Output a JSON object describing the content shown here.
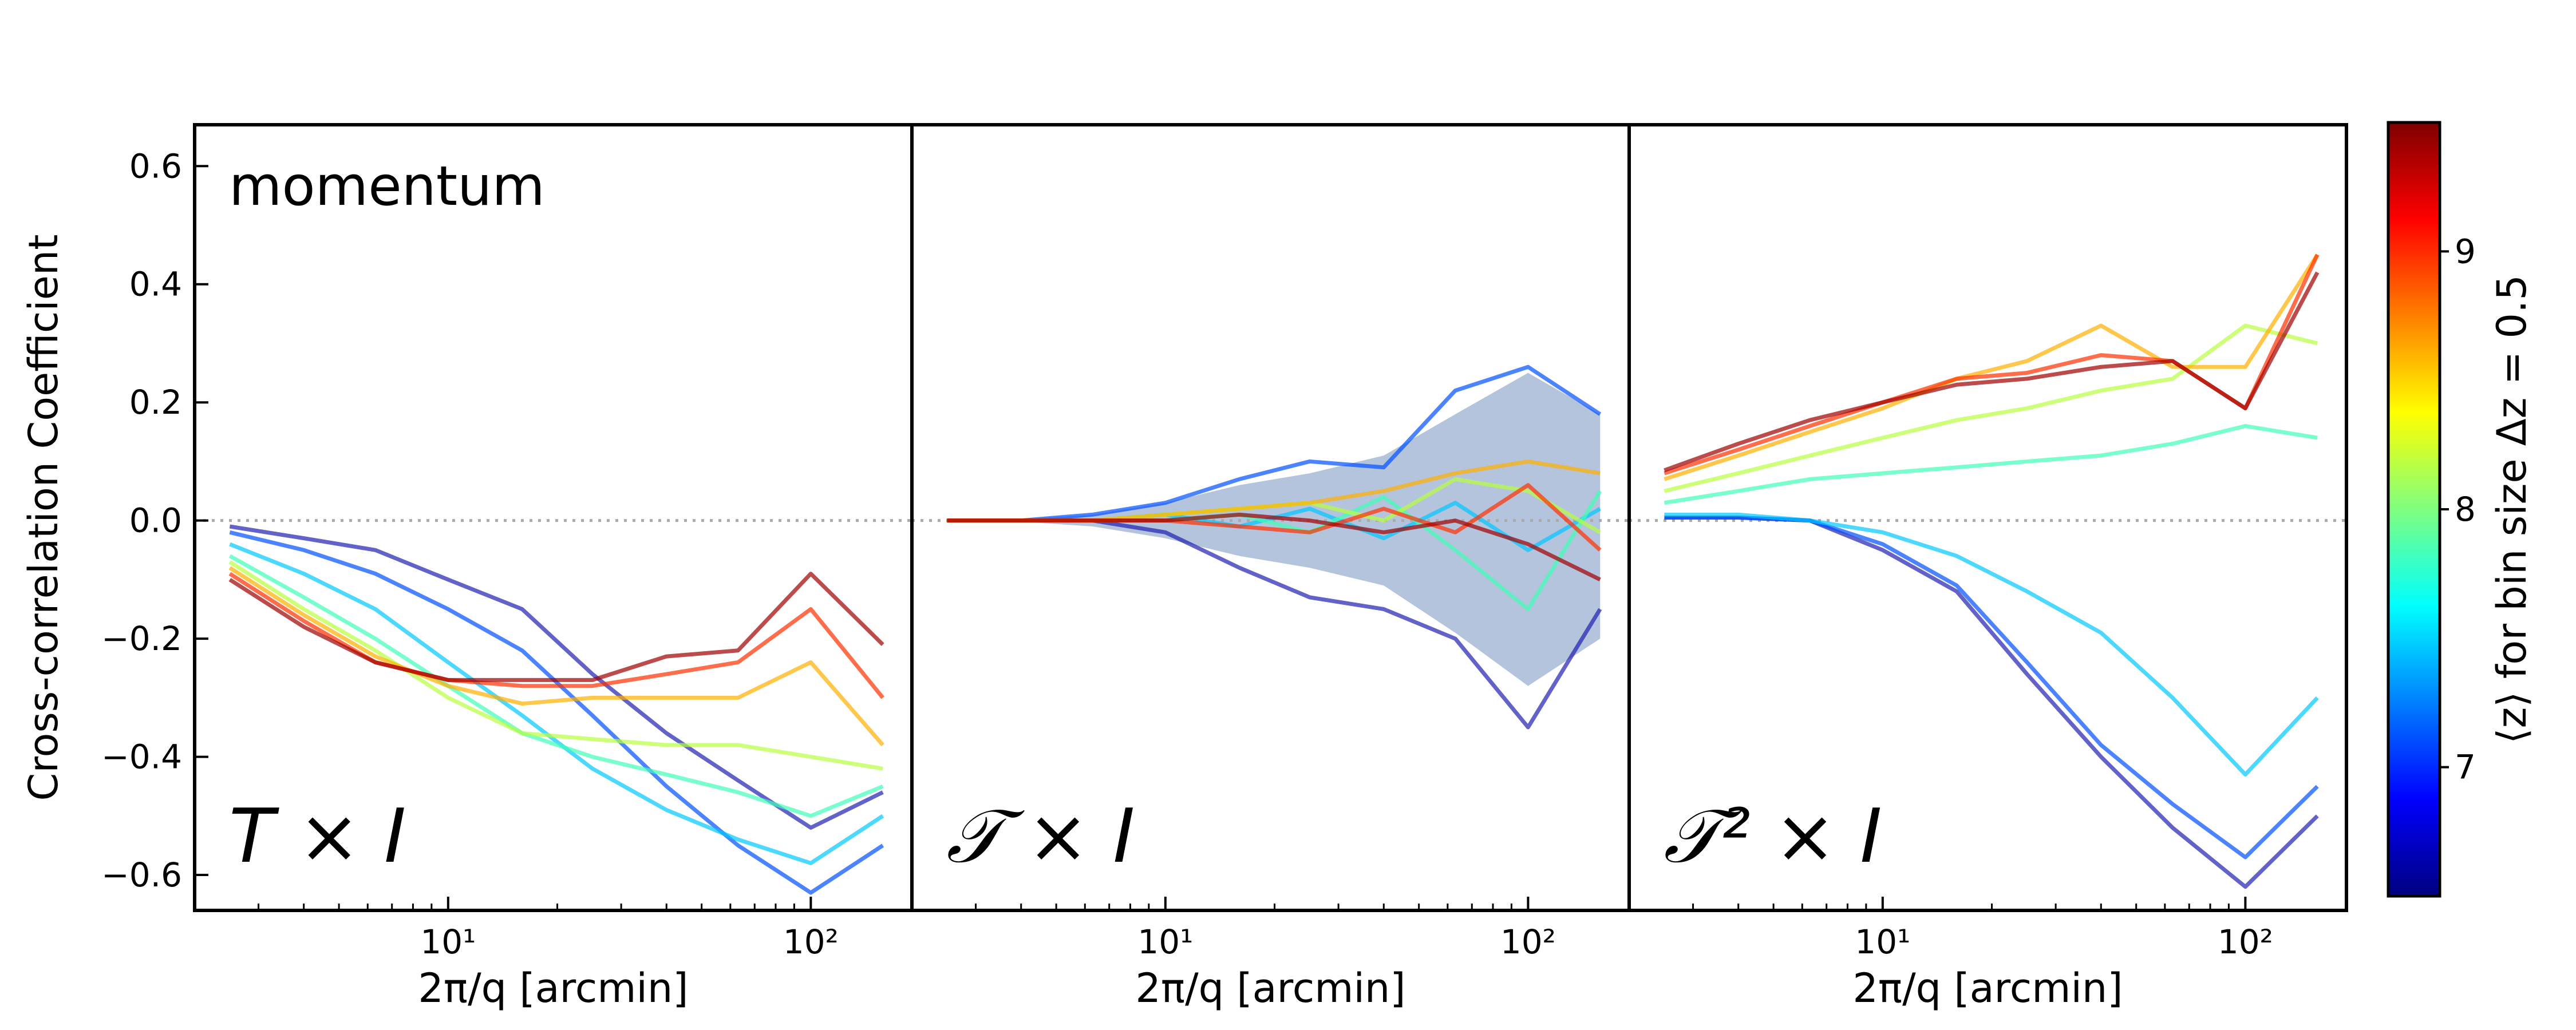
{
  "chart_data": [
    {
      "type": "line",
      "annotations": [
        "momentum",
        "T × I"
      ],
      "ylabel": "Cross-correlation Coefficient",
      "xlabel": "2π/q [arcmin]",
      "log_x": true,
      "xlim": [
        2,
        190
      ],
      "ylim": [
        -0.66,
        0.67
      ],
      "xticks": [
        {
          "value": 10,
          "label": "10¹"
        },
        {
          "value": 100,
          "label": "10²"
        }
      ],
      "xminorticks": [
        3,
        4,
        5,
        6,
        7,
        8,
        9,
        20,
        30,
        40,
        50,
        60,
        70,
        80,
        90
      ],
      "yticks": [
        {
          "value": -0.6,
          "label": "−0.6"
        },
        {
          "value": -0.4,
          "label": "−0.4"
        },
        {
          "value": -0.2,
          "label": "−0.2"
        },
        {
          "value": 0,
          "label": "0.0"
        },
        {
          "value": 0.2,
          "label": "0.2"
        },
        {
          "value": 0.4,
          "label": "0.4"
        },
        {
          "value": 0.6,
          "label": "0.6"
        }
      ],
      "reference_line": 0,
      "x": [
        2.5,
        4,
        6.3,
        10,
        16,
        25,
        40,
        63,
        100,
        158
      ],
      "series": [
        {
          "color": "#2020b0",
          "values": [
            -0.01,
            -0.03,
            -0.05,
            -0.1,
            -0.15,
            -0.26,
            -0.36,
            -0.44,
            -0.52,
            -0.46
          ]
        },
        {
          "color": "#0050ff",
          "values": [
            -0.02,
            -0.05,
            -0.09,
            -0.15,
            -0.22,
            -0.33,
            -0.45,
            -0.55,
            -0.63,
            -0.55
          ]
        },
        {
          "color": "#00c8ff",
          "values": [
            -0.04,
            -0.09,
            -0.15,
            -0.24,
            -0.33,
            -0.42,
            -0.49,
            -0.54,
            -0.58,
            -0.5
          ]
        },
        {
          "color": "#40ffb8",
          "values": [
            -0.06,
            -0.13,
            -0.2,
            -0.28,
            -0.36,
            -0.4,
            -0.43,
            -0.46,
            -0.5,
            -0.45
          ]
        },
        {
          "color": "#b8ff40",
          "values": [
            -0.07,
            -0.15,
            -0.22,
            -0.3,
            -0.36,
            -0.37,
            -0.38,
            -0.38,
            -0.4,
            -0.42
          ]
        },
        {
          "color": "#ffb000",
          "values": [
            -0.08,
            -0.16,
            -0.23,
            -0.28,
            -0.31,
            -0.3,
            -0.3,
            -0.3,
            -0.24,
            -0.38
          ]
        },
        {
          "color": "#ff3000",
          "values": [
            -0.09,
            -0.17,
            -0.24,
            -0.27,
            -0.28,
            -0.28,
            -0.26,
            -0.24,
            -0.15,
            -0.3
          ]
        },
        {
          "color": "#a00000",
          "values": [
            -0.1,
            -0.18,
            -0.24,
            -0.27,
            -0.27,
            -0.27,
            -0.23,
            -0.22,
            -0.09,
            -0.21
          ]
        }
      ]
    },
    {
      "type": "line",
      "annotations": [
        "𝒯 × I"
      ],
      "xlabel": "2π/q [arcmin]",
      "log_x": true,
      "xlim": [
        2,
        190
      ],
      "ylim": [
        -0.66,
        0.67
      ],
      "xticks": [
        {
          "value": 10,
          "label": "10¹"
        },
        {
          "value": 100,
          "label": "10²"
        }
      ],
      "xminorticks": [
        3,
        4,
        5,
        6,
        7,
        8,
        9,
        20,
        30,
        40,
        50,
        60,
        70,
        80,
        90
      ],
      "reference_line": 0,
      "x": [
        2.5,
        4,
        6.3,
        10,
        16,
        25,
        40,
        63,
        100,
        158
      ],
      "band": {
        "color": "#a7bad6",
        "lower": [
          0,
          -0.002,
          -0.01,
          -0.03,
          -0.06,
          -0.08,
          -0.11,
          -0.19,
          -0.28,
          -0.2
        ],
        "upper": [
          0,
          0.002,
          0.01,
          0.03,
          0.06,
          0.08,
          0.11,
          0.18,
          0.25,
          0.18
        ]
      },
      "series": [
        {
          "color": "#2020b0",
          "values": [
            0,
            0,
            0,
            -0.02,
            -0.08,
            -0.13,
            -0.15,
            -0.2,
            -0.35,
            -0.15
          ]
        },
        {
          "color": "#0050ff",
          "values": [
            0,
            0,
            0.01,
            0.03,
            0.07,
            0.1,
            0.09,
            0.22,
            0.26,
            0.18
          ]
        },
        {
          "color": "#00c8ff",
          "values": [
            0,
            0,
            0,
            0.01,
            -0.01,
            0.02,
            -0.03,
            0.03,
            -0.05,
            0.02
          ]
        },
        {
          "color": "#40ffb8",
          "values": [
            0,
            0,
            0,
            0,
            0.01,
            -0.02,
            0.04,
            -0.05,
            -0.15,
            0.05
          ]
        },
        {
          "color": "#b8ff40",
          "values": [
            0,
            0,
            0,
            0.01,
            0.02,
            0.03,
            0,
            0.07,
            0.05,
            -0.02
          ]
        },
        {
          "color": "#ffb000",
          "values": [
            0,
            0,
            0,
            0.01,
            0.02,
            0.03,
            0.05,
            0.08,
            0.1,
            0.08
          ]
        },
        {
          "color": "#ff3000",
          "values": [
            0,
            0,
            0,
            0,
            -0.01,
            -0.02,
            0.02,
            -0.02,
            0.06,
            -0.05
          ]
        },
        {
          "color": "#a00000",
          "values": [
            0,
            0,
            0,
            0,
            0.01,
            0,
            -0.02,
            0,
            -0.04,
            -0.1
          ]
        }
      ]
    },
    {
      "type": "line",
      "annotations": [
        "𝒯² × I"
      ],
      "xlabel": "2π/q [arcmin]",
      "log_x": true,
      "xlim": [
        2,
        190
      ],
      "ylim": [
        -0.66,
        0.67
      ],
      "xticks": [
        {
          "value": 10,
          "label": "10¹"
        },
        {
          "value": 100,
          "label": "10²"
        }
      ],
      "xminorticks": [
        3,
        4,
        5,
        6,
        7,
        8,
        9,
        20,
        30,
        40,
        50,
        60,
        70,
        80,
        90
      ],
      "reference_line": 0,
      "x": [
        2.5,
        4,
        6.3,
        10,
        16,
        25,
        40,
        63,
        100,
        158
      ],
      "series": [
        {
          "color": "#2020b0",
          "values": [
            0.005,
            0.005,
            0,
            -0.05,
            -0.12,
            -0.26,
            -0.4,
            -0.52,
            -0.62,
            -0.5
          ]
        },
        {
          "color": "#0050ff",
          "values": [
            0.005,
            0.005,
            0,
            -0.04,
            -0.11,
            -0.24,
            -0.38,
            -0.48,
            -0.57,
            -0.45
          ]
        },
        {
          "color": "#00c8ff",
          "values": [
            0.01,
            0.01,
            0,
            -0.02,
            -0.06,
            -0.12,
            -0.19,
            -0.3,
            -0.43,
            -0.3
          ]
        },
        {
          "color": "#40ffb8",
          "values": [
            0.03,
            0.05,
            0.07,
            0.08,
            0.09,
            0.1,
            0.11,
            0.13,
            0.16,
            0.14
          ]
        },
        {
          "color": "#b8ff40",
          "values": [
            0.05,
            0.08,
            0.11,
            0.14,
            0.17,
            0.19,
            0.22,
            0.24,
            0.33,
            0.3
          ]
        },
        {
          "color": "#ffb000",
          "values": [
            0.07,
            0.11,
            0.15,
            0.19,
            0.24,
            0.27,
            0.33,
            0.26,
            0.26,
            0.45
          ]
        },
        {
          "color": "#ff3000",
          "values": [
            0.08,
            0.12,
            0.16,
            0.2,
            0.24,
            0.25,
            0.28,
            0.27,
            0.19,
            0.45
          ]
        },
        {
          "color": "#a00000",
          "values": [
            0.085,
            0.13,
            0.17,
            0.2,
            0.23,
            0.24,
            0.26,
            0.27,
            0.19,
            0.42
          ]
        }
      ]
    }
  ],
  "colorbar": {
    "label": "⟨z⟩ for bin size Δz = 0.5",
    "lim": [
      6.5,
      9.5
    ],
    "ticks": [
      7,
      8,
      9
    ],
    "colors": [
      "#00007f",
      "#0000ff",
      "#007fff",
      "#00ffff",
      "#7fff7f",
      "#ffff00",
      "#ff7f00",
      "#ff0000",
      "#7f0000"
    ]
  }
}
